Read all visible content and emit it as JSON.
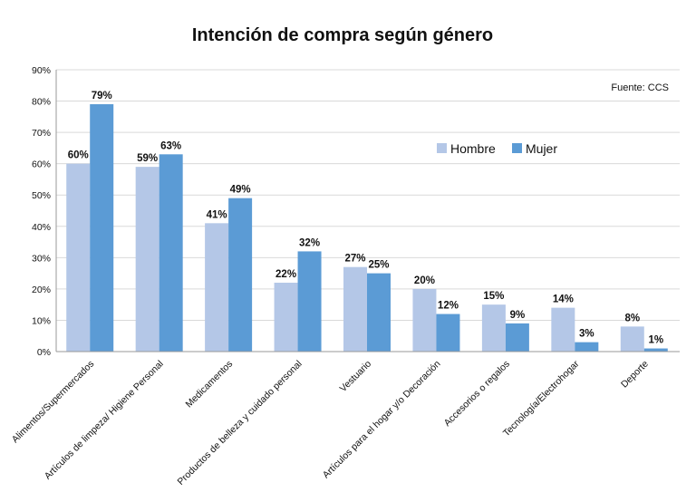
{
  "chart_data": {
    "type": "bar",
    "title": "Intención de compra según género",
    "source": "Fuente: CCS",
    "categories": [
      "Alimentos/Supermercados",
      "Artículos de limpeza/ Higiene Personal",
      "Medicamentos",
      "Productos de belleza y cuidado personal",
      "Vestuario",
      "Artículos para el hogar y/o Decoración",
      "Accesorios o regalos",
      "Tecnología/Electrohogar",
      "Deporte"
    ],
    "series": [
      {
        "name": "Hombre",
        "color": "#b4c7e7",
        "values": [
          60,
          59,
          41,
          22,
          27,
          20,
          15,
          14,
          8
        ]
      },
      {
        "name": "Mujer",
        "color": "#5b9bd5",
        "values": [
          79,
          63,
          49,
          32,
          25,
          12,
          9,
          3,
          1
        ]
      }
    ],
    "ylim": [
      0,
      90
    ],
    "yticks": [
      0,
      10,
      20,
      30,
      40,
      50,
      60,
      70,
      80,
      90
    ],
    "ytick_suffix": "%",
    "value_suffix": "%",
    "grid": true,
    "legend_position": "top-right"
  }
}
